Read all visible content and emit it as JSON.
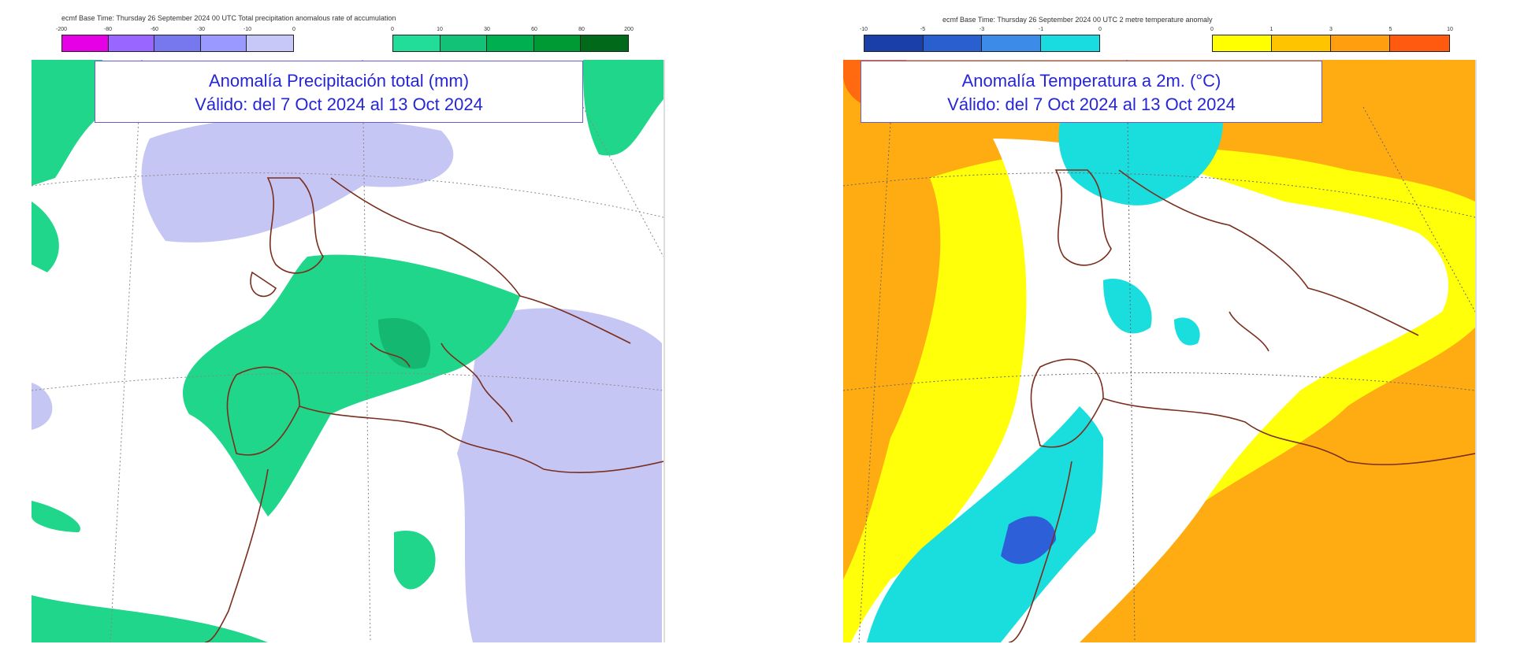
{
  "left": {
    "header": "ecmf  Base Time: Thursday 26 September 2024 00 UTC Total precipitation anomalous rate of accumulation",
    "negative_ticks": [
      "-200",
      "-80",
      "-60",
      "-30",
      "-10",
      "0"
    ],
    "positive_ticks": [
      "0",
      "10",
      "30",
      "60",
      "80",
      "200"
    ],
    "negative_colors": [
      "#e600e6",
      "#9966ff",
      "#7777ee",
      "#9999ff",
      "#c8c8f8"
    ],
    "positive_colors": [
      "#22dd99",
      "#11c277",
      "#00b050",
      "#009a35",
      "#006a1a"
    ],
    "title_line1": "Anomalía Precipitación total (mm)",
    "title_line2": "Válido: del 7 Oct 2024 al 13 Oct 2024",
    "colors": {
      "positive": "#1fd68a",
      "positive_dark": "#14b871",
      "negative": "#c6c6f5",
      "land_border": "#7a2e1e",
      "grid": "#888888"
    }
  },
  "right": {
    "header": "ecmf  Base Time: Thursday 26 September 2024 00 UTC 2 metre temperature anomaly",
    "negative_ticks": [
      "-10",
      "-5",
      "-3",
      "-1",
      "0"
    ],
    "positive_ticks": [
      "0",
      "1",
      "3",
      "5",
      "10"
    ],
    "negative_colors": [
      "#1a3fa8",
      "#2a5fd0",
      "#3c8be8",
      "#18dce0"
    ],
    "positive_colors": [
      "#ffff00",
      "#ffc400",
      "#ff9f10",
      "#ff5a10"
    ],
    "title_line1": "Anomalía Temperatura a 2m. (°C)",
    "title_line2": "Válido: del 7 Oct 2024 al 13 Oct 2024",
    "colors": {
      "cool": "#1adedd",
      "cool_dark": "#2c5fd8",
      "warm1": "#ffff0a",
      "warm2": "#ffac12",
      "warm3": "#ff6a10",
      "land_border": "#7a2e1e",
      "grid": "#666666"
    }
  }
}
